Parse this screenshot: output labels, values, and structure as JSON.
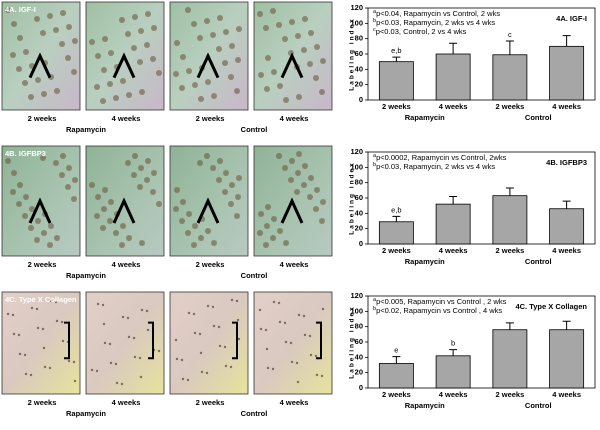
{
  "image_panels": [
    {
      "title": "4A. IGF-I",
      "labels": [
        "2 weeks",
        "4 weeks",
        "2 weeks",
        "4 weeks"
      ],
      "groups": [
        "Rapamycin",
        "Control"
      ]
    },
    {
      "title": "4B. IGFBP3",
      "labels": [
        "2 weeks",
        "4 weeks",
        "2 weeks",
        "4 weeks"
      ],
      "groups": [
        "Rapamycin",
        "Control"
      ]
    },
    {
      "title": "4C. Type X Collagen",
      "labels": [
        "2 weeks",
        "4 weeks",
        "2 weeks",
        "4 weeks"
      ],
      "groups": [
        "Rapamycin",
        "Control"
      ]
    }
  ],
  "chart_data": [
    {
      "type": "bar",
      "title": "4A. IGF-I",
      "y_label": "Labeling index",
      "categories": [
        "2 weeks",
        "4 weeks",
        "2 weeks",
        "4 weeks"
      ],
      "groups": [
        "Rapamycin",
        "Control"
      ],
      "values": [
        50,
        60,
        59,
        70
      ],
      "errors": [
        6,
        14,
        18,
        14
      ],
      "bar_labels": [
        "e,b",
        null,
        "c",
        null
      ],
      "notes": [
        {
          "mark": "a",
          "text": "p<0.04, Rapamycin vs Control,  2 wks"
        },
        {
          "mark": "b",
          "text": "p<0.03, Rapamycin,  2 wks vs 4 wks"
        },
        {
          "mark": "c",
          "text": "p<0.03, Control, 2 vs 4 wks"
        }
      ],
      "color": "#a6a6a6",
      "ylim": [
        0,
        120
      ],
      "yticks": [
        0,
        20,
        40,
        60,
        80,
        100,
        120
      ]
    },
    {
      "type": "bar",
      "title": "4B. IGFBP3",
      "y_label": "Labeling index",
      "categories": [
        "2 weeks",
        "4 weeks",
        "2 weeks",
        "4 weeks"
      ],
      "groups": [
        "Rapamycin",
        "Control"
      ],
      "values": [
        29,
        52,
        63,
        46
      ],
      "errors": [
        7,
        10,
        10,
        10
      ],
      "bar_labels": [
        "e,b",
        null,
        null,
        null
      ],
      "notes": [
        {
          "mark": "a",
          "text": "p<0.0002, Rapamycin vs Control, 2wks"
        },
        {
          "mark": "b",
          "text": "p<0.03, Rapamycin,  2 wks vs 4 wks"
        }
      ],
      "color": "#a6a6a6",
      "ylim": [
        0,
        120
      ],
      "yticks": [
        0,
        20,
        40,
        60,
        80,
        100,
        120
      ]
    },
    {
      "type": "bar",
      "title": "4C.  Type X Collagen",
      "y_label": "Labeling index",
      "categories": [
        "2 weeks",
        "4 weeks",
        "2 weeks",
        "4 weeks"
      ],
      "groups": [
        "Rapamycin",
        "Control"
      ],
      "values": [
        32,
        42,
        76,
        76
      ],
      "errors": [
        9,
        8,
        9,
        11
      ],
      "bar_labels": [
        "e",
        "b",
        null,
        null
      ],
      "notes": [
        {
          "mark": "a",
          "text": "p<0.005, Rapamycin vs Control , 2 wks"
        },
        {
          "mark": "b",
          "text": "p<0.02, Rapamycin vs Control , 4 wks"
        }
      ],
      "color": "#a6a6a6",
      "ylim": [
        0,
        120
      ],
      "yticks": [
        0,
        20,
        40,
        60,
        80,
        100,
        120
      ]
    }
  ]
}
